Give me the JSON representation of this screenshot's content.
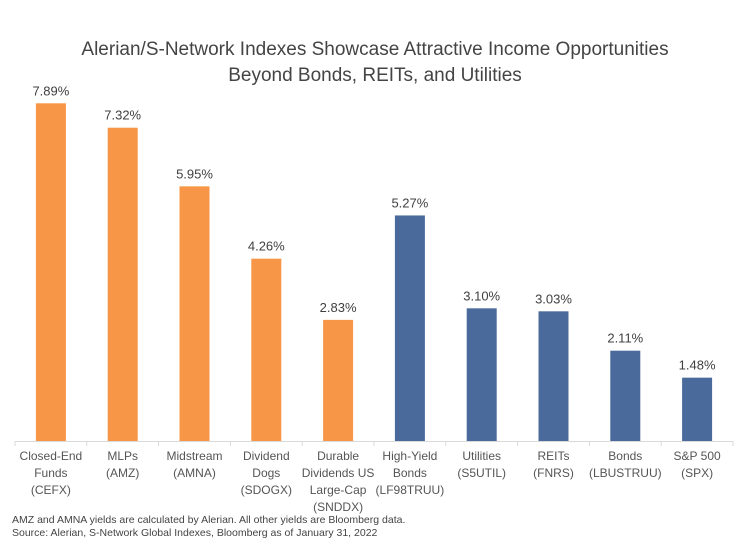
{
  "chart_data": {
    "type": "bar",
    "title": [
      "Alerian/S-Network Indexes Showcase Attractive Income Opportunities",
      "Beyond Bonds, REITs, and Utilities"
    ],
    "categories": [
      [
        "Closed-End",
        "Funds",
        "(CEFX)"
      ],
      [
        "MLPs",
        "(AMZ)"
      ],
      [
        "Midstream",
        "(AMNA)"
      ],
      [
        "Dividend Dogs",
        "(SDOGX)"
      ],
      [
        "Durable",
        "Dividends US",
        "Large-Cap",
        "(SNDDX)"
      ],
      [
        "High-Yield",
        "Bonds",
        "(LF98TRUU)"
      ],
      [
        "Utilities",
        "(S5UTIL)"
      ],
      [
        "REITs",
        "(FNRS)"
      ],
      [
        "Bonds",
        "(LBUSTRUU)"
      ],
      [
        "S&P 500",
        "(SPX)"
      ]
    ],
    "values": [
      7.89,
      7.32,
      5.95,
      4.26,
      2.83,
      5.27,
      3.1,
      3.03,
      2.11,
      1.48
    ],
    "labels": [
      "7.89%",
      "7.32%",
      "5.95%",
      "4.26%",
      "2.83%",
      "5.27%",
      "3.10%",
      "3.03%",
      "2.11%",
      "1.48%"
    ],
    "groups": [
      "alerian",
      "alerian",
      "alerian",
      "alerian",
      "alerian",
      "other",
      "other",
      "other",
      "other",
      "other"
    ],
    "colors": {
      "alerian": "#F79646",
      "other": "#4A6A9B"
    },
    "ylim": [
      0,
      8
    ],
    "grid": false,
    "xlabel": "",
    "ylabel": ""
  },
  "notes": [
    "AMZ and AMNA yields are calculated by Alerian. All other yields are Bloomberg data.",
    "Source: Alerian, S-Network Global Indexes, Bloomberg as of January 31, 2022"
  ]
}
